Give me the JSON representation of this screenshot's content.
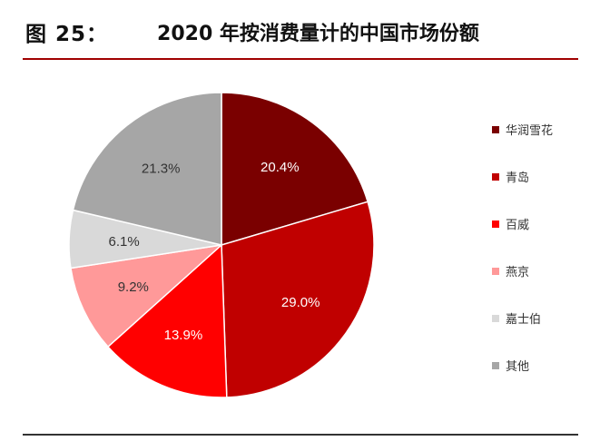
{
  "figure": {
    "number": "图 25：",
    "title": "2020 年按消费量计的中国市场份额"
  },
  "chart_data": {
    "type": "pie",
    "title": "",
    "slices": [
      {
        "label": "华润雪花",
        "value": 20.4,
        "display": "20.4%",
        "color": "#7a0000",
        "text_color": "#ffffff"
      },
      {
        "label": "青岛",
        "value": 29.0,
        "display": "29.0%",
        "color": "#c00000",
        "text_color": "#ffffff"
      },
      {
        "label": "百威",
        "value": 13.9,
        "display": "13.9%",
        "color": "#ff0000",
        "text_color": "#ffffff"
      },
      {
        "label": "燕京",
        "value": 9.2,
        "display": "9.2%",
        "color": "#ff9999",
        "text_color": "#333333"
      },
      {
        "label": "嘉士伯",
        "value": 6.1,
        "display": "6.1%",
        "color": "#d9d9d9",
        "text_color": "#333333"
      },
      {
        "label": "其他",
        "value": 21.3,
        "display": "21.3%",
        "color": "#a6a6a6",
        "text_color": "#333333"
      }
    ],
    "legend_position": "right",
    "start_angle": "12 o'clock, clockwise"
  }
}
